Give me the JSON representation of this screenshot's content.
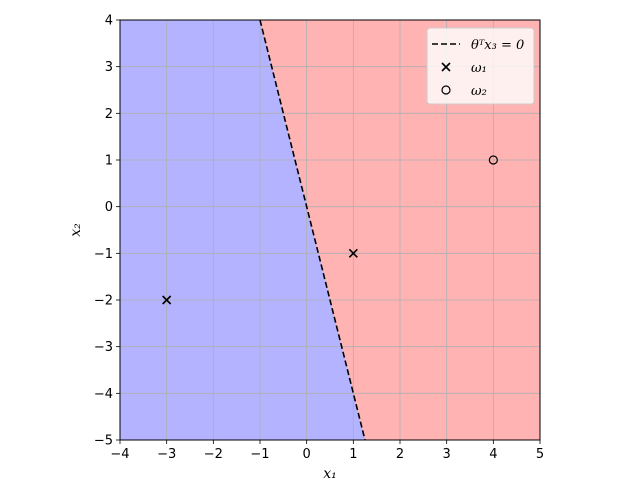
{
  "chart_data": {
    "type": "scatter",
    "title": "",
    "xlabel": "x₁",
    "ylabel": "x₂",
    "xlim": [
      -4,
      5
    ],
    "ylim": [
      -5,
      4
    ],
    "xticks": [
      -4,
      -3,
      -2,
      -1,
      0,
      1,
      2,
      3,
      4,
      5
    ],
    "yticks": [
      -5,
      -4,
      -3,
      -2,
      -1,
      0,
      1,
      2,
      3,
      4
    ],
    "xtick_labels": [
      "−4",
      "−3",
      "−2",
      "−1",
      "0",
      "1",
      "2",
      "3",
      "4",
      "5"
    ],
    "ytick_labels": [
      "−5",
      "−4",
      "−3",
      "−2",
      "−1",
      "0",
      "1",
      "2",
      "3",
      "4"
    ],
    "grid": true,
    "legend_position": "top-right",
    "regions": {
      "left_color": "#b3b3ff",
      "right_color": "#ffb3b3"
    },
    "decision_boundary": {
      "name": "θᵀx₃ = 0",
      "style": "dashed",
      "color": "#000000",
      "points": [
        [
          -1.0,
          4.0
        ],
        [
          1.25,
          -5.0
        ]
      ]
    },
    "series": [
      {
        "name": "ω₁",
        "marker": "x",
        "color": "#000000",
        "points": [
          [
            -3,
            -2
          ],
          [
            1,
            -1
          ]
        ]
      },
      {
        "name": "ω₂",
        "marker": "o",
        "color": "#000000",
        "points": [
          [
            4,
            1
          ]
        ]
      }
    ]
  }
}
